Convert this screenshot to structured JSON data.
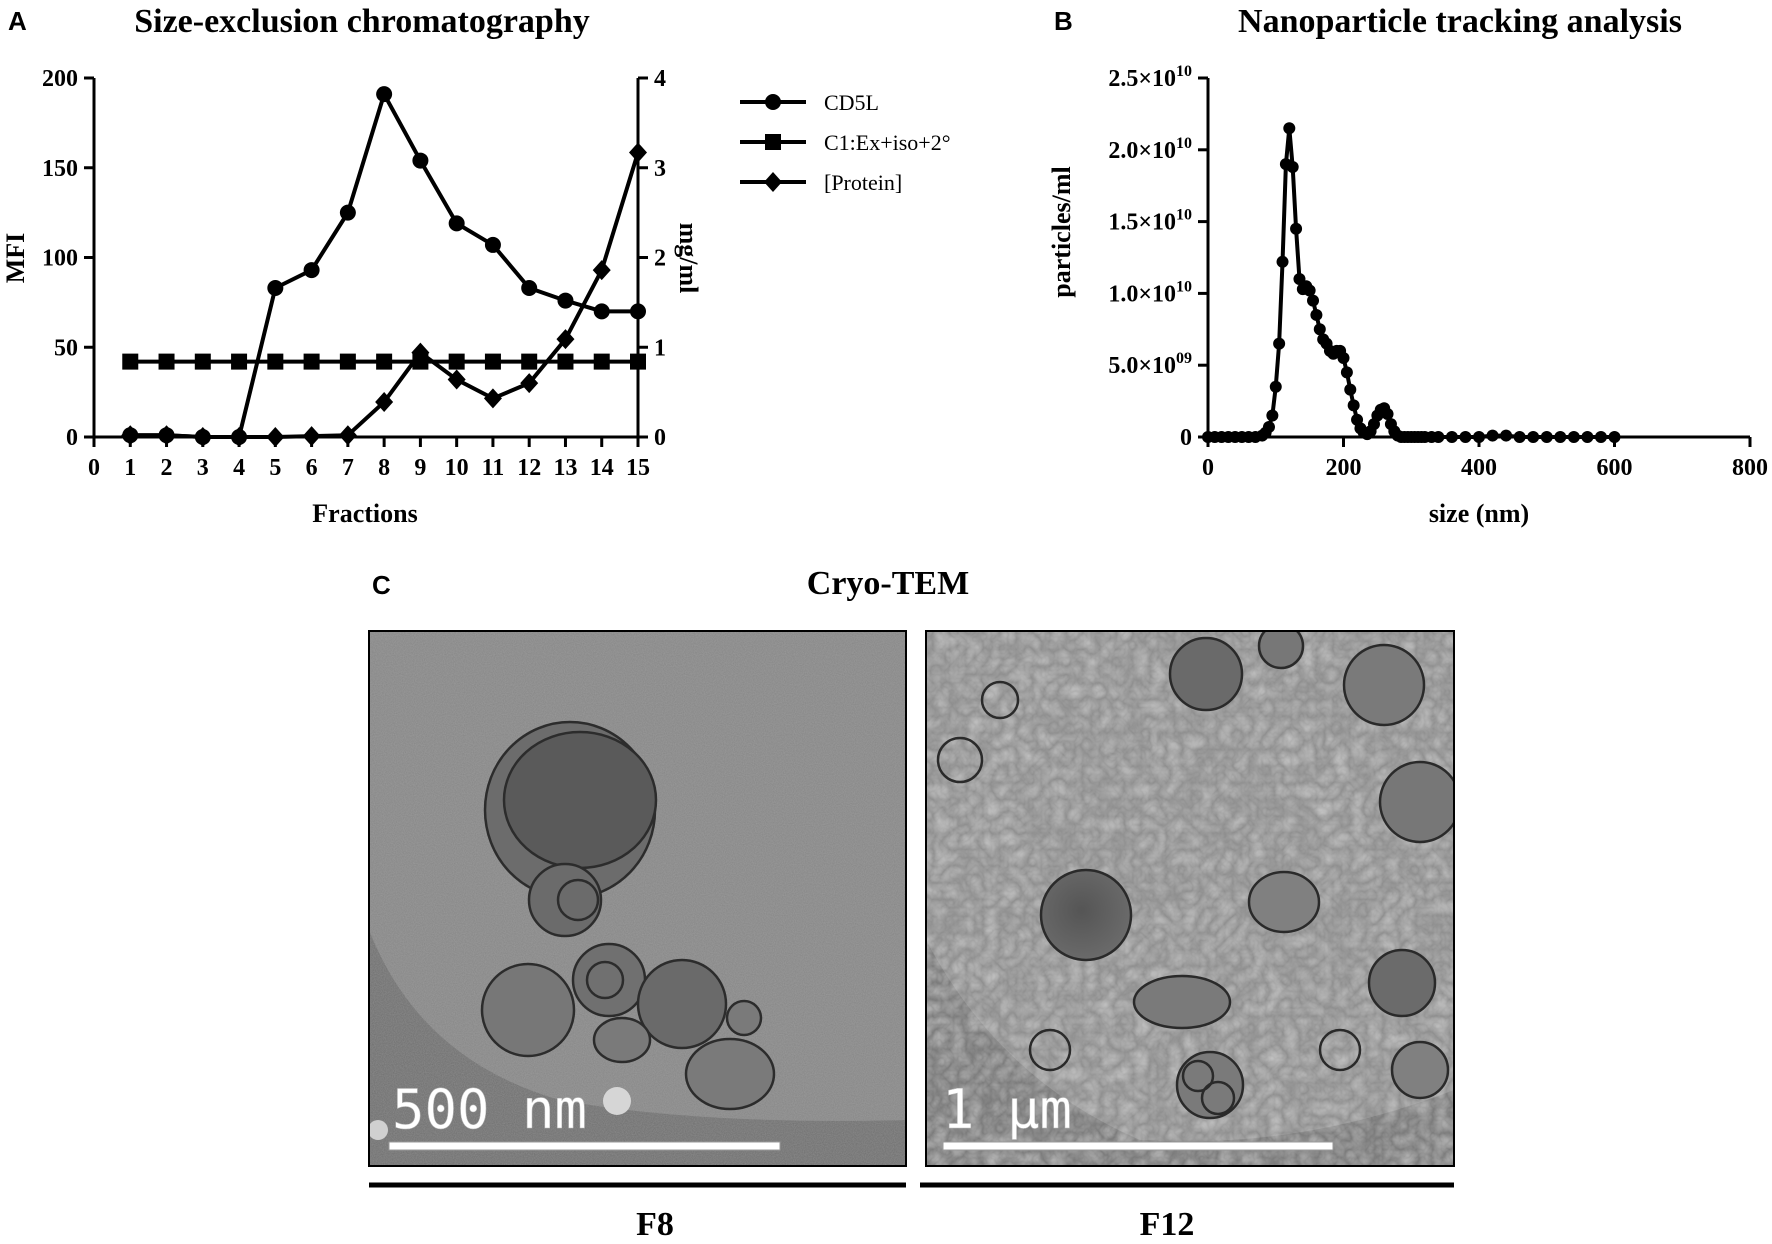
{
  "panels": {
    "a": {
      "letter": "A"
    },
    "b": {
      "letter": "B"
    },
    "c": {
      "letter": "C",
      "title": "Cryo-TEM",
      "images": [
        {
          "scale_bar_label": "500 nm",
          "caption": "F8"
        },
        {
          "scale_bar_label": "1 μm",
          "caption": "F12"
        }
      ]
    }
  },
  "chart_data": [
    {
      "type": "line",
      "title": "Size-exclusion chromatography",
      "xlabel": "Fractions",
      "ylabel": "MFI",
      "y2label": "mg/ml",
      "xlim": [
        0,
        15
      ],
      "ylim": [
        0,
        200
      ],
      "y2lim": [
        0,
        4
      ],
      "xticks": [
        "0",
        "1",
        "2",
        "3",
        "4",
        "5",
        "6",
        "7",
        "8",
        "9",
        "10",
        "11",
        "12",
        "13",
        "14",
        "15"
      ],
      "yticks": [
        "0",
        "50",
        "100",
        "150",
        "200"
      ],
      "y2ticks": [
        "0",
        "1",
        "2",
        "3",
        "4"
      ],
      "legend_position": "right",
      "grid": false,
      "series": [
        {
          "name": "CD5L",
          "axis": "left",
          "marker": "circle",
          "x": [
            1,
            2,
            3,
            4,
            5,
            6,
            7,
            8,
            9,
            10,
            11,
            12,
            13,
            14,
            15
          ],
          "values": [
            1,
            1,
            0,
            0,
            83,
            93,
            125,
            191,
            154,
            119,
            107,
            83,
            76,
            70,
            70
          ]
        },
        {
          "name": "C1:Ex+iso+2°",
          "axis": "left",
          "marker": "square",
          "x": [
            1,
            2,
            3,
            4,
            5,
            6,
            7,
            8,
            9,
            10,
            11,
            12,
            13,
            14,
            15
          ],
          "values": [
            42,
            42,
            42,
            42,
            42,
            42,
            42,
            42,
            42,
            42,
            42,
            42,
            42,
            42,
            42
          ]
        },
        {
          "name": "[Protein]",
          "axis": "right",
          "marker": "diamond",
          "x": [
            1,
            2,
            3,
            4,
            5,
            6,
            7,
            8,
            9,
            10,
            11,
            12,
            13,
            14,
            15
          ],
          "values": [
            0.02,
            0.02,
            0.0,
            0.0,
            0.0,
            0.01,
            0.02,
            0.39,
            0.94,
            0.64,
            0.43,
            0.6,
            1.09,
            1.86,
            3.17
          ]
        }
      ]
    },
    {
      "type": "line",
      "title": "Nanoparticle tracking analysis",
      "xlabel": "size (nm)",
      "ylabel": "particles/ml",
      "xlim": [
        0,
        800
      ],
      "ylim": [
        0,
        25000000000.0
      ],
      "xticks": [
        "0",
        "200",
        "400",
        "600",
        "800"
      ],
      "yticks": [
        {
          "base": "0",
          "exp": ""
        },
        {
          "base": "5.0×10",
          "exp": "09"
        },
        {
          "base": "1.0×10",
          "exp": "10"
        },
        {
          "base": "1.5×10",
          "exp": "10"
        },
        {
          "base": "2.0×10",
          "exp": "10"
        },
        {
          "base": "2.5×10",
          "exp": "10"
        }
      ],
      "grid": false,
      "series": [
        {
          "name": "",
          "marker": "circle",
          "x": [
            0,
            10,
            20,
            30,
            40,
            50,
            60,
            70,
            80,
            85,
            90,
            95,
            100,
            105,
            110,
            115,
            120,
            125,
            130,
            135,
            140,
            145,
            150,
            155,
            160,
            165,
            170,
            175,
            180,
            185,
            190,
            195,
            200,
            205,
            210,
            215,
            220,
            225,
            230,
            235,
            240,
            245,
            250,
            255,
            260,
            265,
            270,
            275,
            280,
            285,
            290,
            295,
            300,
            305,
            310,
            315,
            320,
            330,
            340,
            360,
            380,
            400,
            420,
            440,
            460,
            480,
            500,
            520,
            540,
            560,
            580,
            600
          ],
          "values": [
            0,
            0,
            0,
            0,
            0,
            0,
            0,
            0,
            100000000.0,
            300000000.0,
            700000000.0,
            1500000000.0,
            3500000000.0,
            6500000000.0,
            12200000000.0,
            19000000000.0,
            21500000000.0,
            18800000000.0,
            14500000000.0,
            11000000000.0,
            10300000000.0,
            10500000000.0,
            10200000000.0,
            9500000000.0,
            8500000000.0,
            7500000000.0,
            6800000000.0,
            6500000000.0,
            6000000000.0,
            5800000000.0,
            6000000000.0,
            6000000000.0,
            5500000000.0,
            4500000000.0,
            3300000000.0,
            2200000000.0,
            1200000000.0,
            600000000.0,
            300000000.0,
            200000000.0,
            400000000.0,
            900000000.0,
            1500000000.0,
            1900000000.0,
            2000000000.0,
            1600000000.0,
            900000000.0,
            400000000.0,
            100000000.0,
            0,
            0,
            0,
            0,
            0,
            0,
            0,
            0,
            0,
            0,
            0,
            0,
            0,
            100000000.0,
            100000000.0,
            0,
            0,
            0,
            0,
            0,
            0,
            0,
            0
          ]
        }
      ]
    }
  ]
}
